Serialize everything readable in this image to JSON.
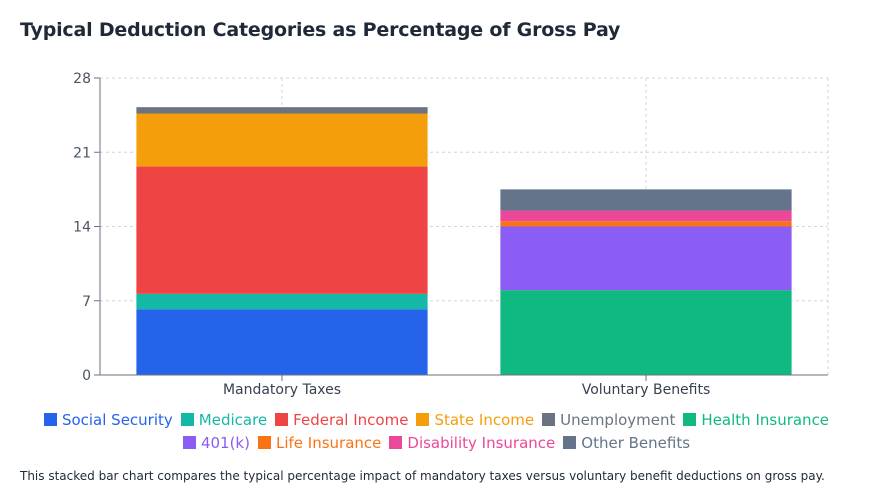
{
  "title": "Typical Deduction Categories as Percentage of Gross Pay",
  "caption": "This stacked bar chart compares the typical percentage impact of mandatory taxes versus voluntary benefit deductions on gross pay.",
  "chart_data": {
    "type": "bar",
    "stacked": true,
    "title": "Typical Deduction Categories as Percentage of Gross Pay",
    "categories": [
      "Mandatory Taxes",
      "Voluntary Benefits"
    ],
    "ylim": [
      0,
      28
    ],
    "yticks": [
      0,
      7,
      14,
      21,
      28
    ],
    "grid": true,
    "legend_position": "bottom",
    "series": [
      {
        "name": "Social Security",
        "color": "#2563eb",
        "values": [
          6.2,
          0
        ]
      },
      {
        "name": "Medicare",
        "color": "#14b8a6",
        "values": [
          1.45,
          0
        ]
      },
      {
        "name": "Federal Income",
        "color": "#ef4444",
        "values": [
          12,
          0
        ]
      },
      {
        "name": "State Income",
        "color": "#f59e0b",
        "values": [
          5,
          0
        ]
      },
      {
        "name": "Unemployment",
        "color": "#6b7280",
        "values": [
          0.6,
          0
        ]
      },
      {
        "name": "Health Insurance",
        "color": "#10b981",
        "values": [
          0,
          8
        ]
      },
      {
        "name": "401(k)",
        "color": "#8b5cf6",
        "values": [
          0,
          6
        ]
      },
      {
        "name": "Life Insurance",
        "color": "#f97316",
        "values": [
          0,
          0.5
        ]
      },
      {
        "name": "Disability Insurance",
        "color": "#ec4899",
        "values": [
          0,
          1
        ]
      },
      {
        "name": "Other Benefits",
        "color": "#64748b",
        "values": [
          0,
          2
        ]
      }
    ]
  }
}
